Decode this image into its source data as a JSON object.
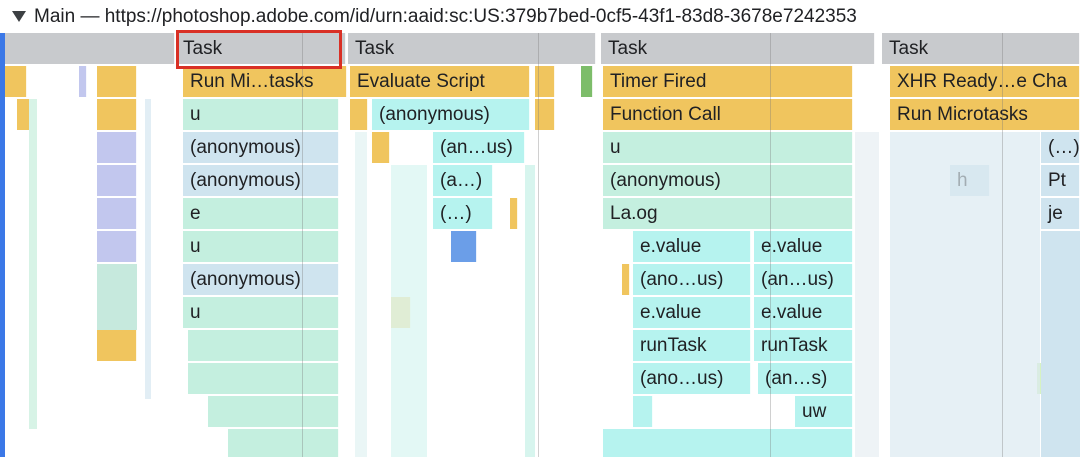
{
  "track": {
    "title": "Main — https://photoshop.adobe.com/id/urn:aaid:sc:US:379b7bed-0cf5-43f1-83d8-3678e7242353",
    "collapse_icon": "triangle-down-icon"
  },
  "colors": {
    "task": "#c8cacd",
    "scripting": "#f0c55e",
    "function_mint": "#c4efdf",
    "function_aqua": "#b6f3ef",
    "function_sky": "#cfe4ef",
    "selection": "#d93025",
    "track_stripe": "#3b78e7"
  },
  "tasks": [
    "Task",
    "Task",
    "Task",
    "Task"
  ],
  "row1": {
    "a": "Run Mi…tasks",
    "b": "Evaluate Script",
    "c": "Timer Fired",
    "d": "XHR Ready…e Cha"
  },
  "row2": {
    "a": "u",
    "b": "(anonymous)",
    "c": "Function Call",
    "d": "Run Microtasks"
  },
  "row3": {
    "a": "(anonymous)",
    "b": "(an…us)",
    "c": "u",
    "d": "(…)"
  },
  "row4": {
    "a": "(anonymous)",
    "b": "(a…)",
    "c": "(anonymous)",
    "d1": "h",
    "d2": "Pt"
  },
  "row5": {
    "a": "e",
    "b": "(…)",
    "c": "La.og",
    "d": "je"
  },
  "row6": {
    "a": "u",
    "c1": "e.value",
    "c2": "e.value"
  },
  "row7": {
    "a": "(anonymous)",
    "c1": "(ano…us)",
    "c2": "(an…us)"
  },
  "row8": {
    "a": "u",
    "c1": "e.value",
    "c2": "e.value"
  },
  "row9": {
    "c1": "runTask",
    "c2": "runTask"
  },
  "row10": {
    "c1": "(ano…us)",
    "c2": "(an…s)"
  },
  "row11": {
    "c2": "uw"
  }
}
